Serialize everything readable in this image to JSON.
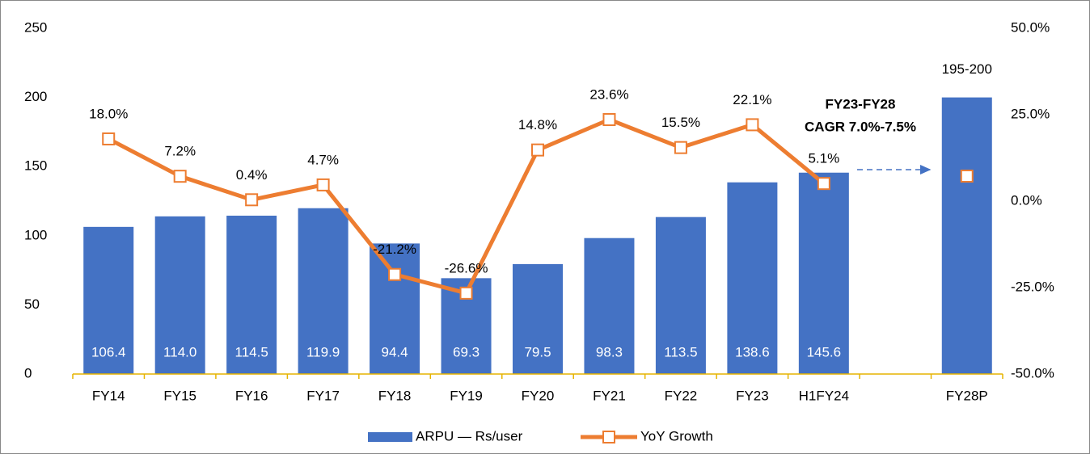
{
  "chart_data": {
    "type": "bar",
    "categories": [
      "FY14",
      "FY15",
      "FY16",
      "FY17",
      "FY18",
      "FY19",
      "FY20",
      "FY21",
      "FY22",
      "FY23",
      "H1FY24",
      null,
      "FY28P"
    ],
    "series": [
      {
        "name": "ARPU — Rs/user",
        "type": "bar",
        "color": "#4472c4",
        "values": [
          106.4,
          114.0,
          114.5,
          119.9,
          94.4,
          69.3,
          79.5,
          98.3,
          113.5,
          138.6,
          145.6,
          null,
          200
        ],
        "value_labels": [
          "106.4",
          "114.0",
          "114.5",
          "119.9",
          "94.4",
          "69.3",
          "79.5",
          "98.3",
          "113.5",
          "138.6",
          "145.6",
          null,
          "195-200"
        ]
      },
      {
        "name": "YoY Growth",
        "type": "line",
        "axis": "y2",
        "color": "#ed7d31",
        "values": [
          18.0,
          7.2,
          0.4,
          4.7,
          -21.2,
          -26.6,
          14.8,
          23.6,
          15.5,
          22.1,
          5.1,
          null,
          7.25
        ],
        "value_labels": [
          "18.0%",
          "7.2%",
          "0.4%",
          "4.7%",
          "-21.2%",
          "-26.6%",
          "14.8%",
          "23.6%",
          "15.5%",
          "22.1%",
          "5.1%",
          null,
          null
        ]
      }
    ],
    "ylim": [
      0,
      250
    ],
    "yticks": [
      0,
      50,
      100,
      150,
      200,
      250
    ],
    "y2lim": [
      -50,
      50
    ],
    "y2ticks": [
      {
        "value": -50,
        "label": "-50.0%"
      },
      {
        "value": -25,
        "label": "-25.0%"
      },
      {
        "value": 0,
        "label": "0.0%"
      },
      {
        "value": 25,
        "label": "25.0%"
      },
      {
        "value": 50,
        "label": "50.0%"
      }
    ],
    "annotations": [
      "FY23-FY28",
      "CAGR 7.0%-7.5%"
    ],
    "legend": "bottom"
  }
}
